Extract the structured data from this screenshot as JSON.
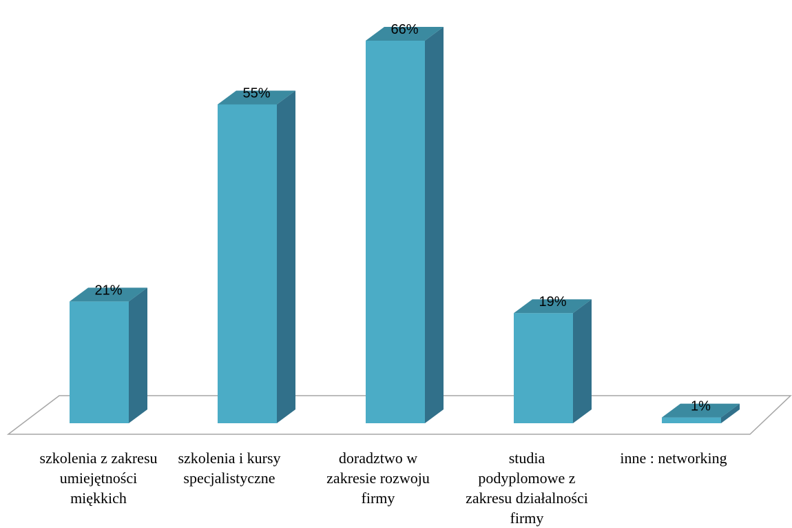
{
  "chart_data": {
    "type": "bar",
    "style": "3d-column",
    "categories": [
      "szkolenia z zakresu umiejętności miękkich",
      "szkolenia i kursy specjalistyczne",
      "doradztwo w zakresie rozwoju firmy",
      "studia podyplomowe z zakresu działalności firmy",
      "inne : networking"
    ],
    "values": [
      21,
      55,
      66,
      19,
      1
    ],
    "data_labels": [
      "21%",
      "55%",
      "66%",
      "19%",
      "1%"
    ],
    "unit": "%",
    "ylim": [
      0,
      70
    ],
    "grid": false,
    "legend": "none",
    "colors": {
      "bar_front": "#4bacc6",
      "bar_top": "#3b8aa0",
      "bar_side": "#31708a",
      "floor_stroke": "#a6a6a6"
    }
  }
}
